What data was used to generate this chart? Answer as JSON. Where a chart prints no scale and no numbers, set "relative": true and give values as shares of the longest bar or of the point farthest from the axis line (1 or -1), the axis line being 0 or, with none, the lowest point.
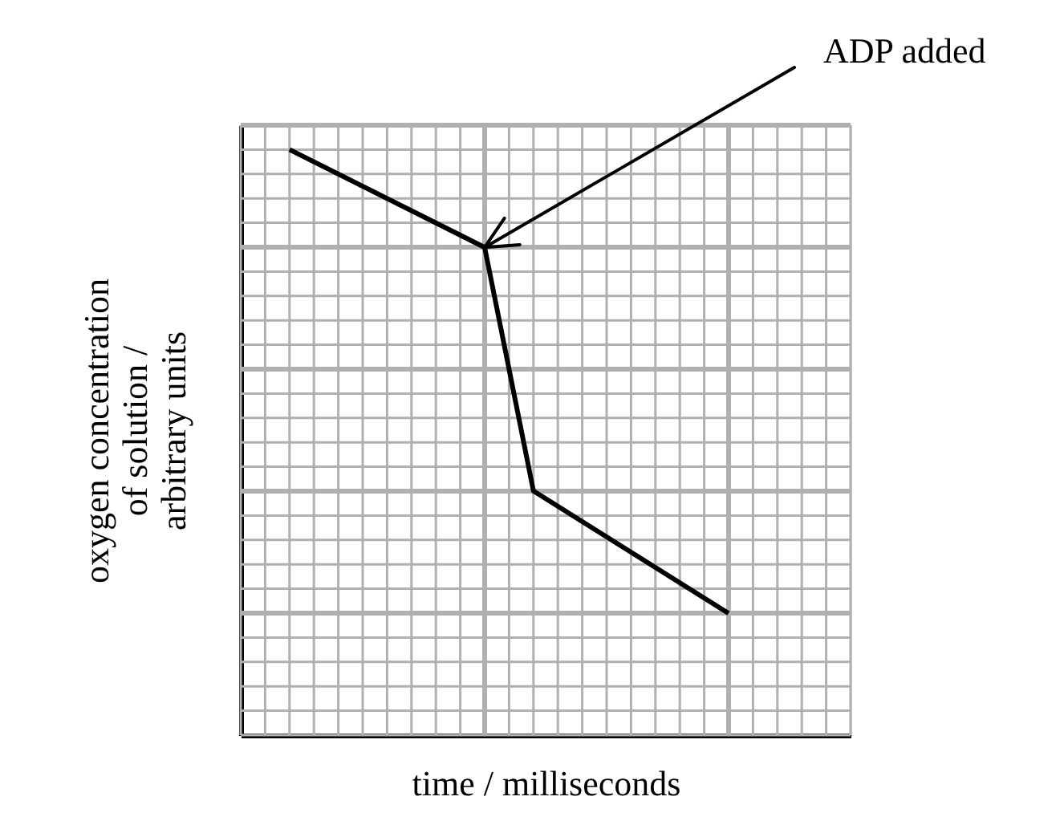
{
  "chart_data": {
    "type": "line",
    "xlabel": "time / milliseconds",
    "ylabel": "oxygen concentration\nof solution /\narbitrary units",
    "relative": true,
    "categories": [
      null,
      null,
      null,
      null,
      null,
      null,
      null,
      null,
      null,
      null,
      null,
      null,
      null,
      null,
      null,
      null,
      null,
      null,
      null,
      null,
      null,
      null,
      null,
      null,
      null,
      null
    ],
    "grid": true,
    "tick_labels": false,
    "line_style": "solid",
    "series": [
      {
        "color": "#000000",
        "values": [
          null,
          null,
          1,
          null,
          null,
          null,
          null,
          null,
          null,
          null,
          0.833,
          null,
          0.417,
          null,
          null,
          null,
          null,
          null,
          null,
          null,
          0.208,
          null,
          null,
          null,
          null,
          null
        ]
      }
    ],
    "annotations": [
      "ADP added"
    ]
  }
}
